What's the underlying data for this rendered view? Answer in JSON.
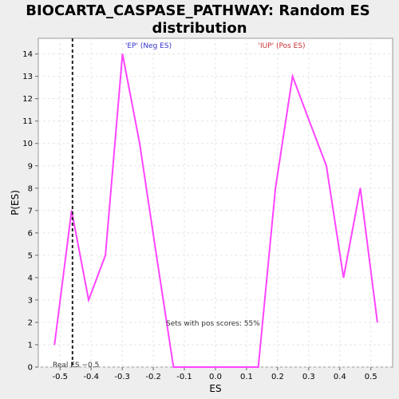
{
  "chart_data": {
    "type": "line",
    "title_line1": "BIOCARTA_CASPASE_PATHWAY: Random ES",
    "title_line2": "distribution",
    "xlabel": "ES",
    "ylabel": "P(ES)",
    "xlim": [
      -0.57,
      0.57
    ],
    "ylim": [
      0,
      14.7
    ],
    "xticks": [
      "-0.5",
      "-0.4",
      "-0.3",
      "-0.2",
      "-0.1",
      "0.0",
      "0.1",
      "0.2",
      "0.3",
      "0.4",
      "0.5"
    ],
    "xtick_values": [
      -0.5,
      -0.4,
      -0.3,
      -0.2,
      -0.1,
      0.0,
      0.1,
      0.2,
      0.3,
      0.4,
      0.5
    ],
    "yticks": [
      "0",
      "1",
      "2",
      "3",
      "4",
      "5",
      "6",
      "7",
      "8",
      "9",
      "10",
      "11",
      "12",
      "13",
      "14"
    ],
    "ytick_values": [
      0,
      1,
      2,
      3,
      4,
      5,
      6,
      7,
      8,
      9,
      10,
      11,
      12,
      13,
      14
    ],
    "grid": true,
    "series": [
      {
        "color": "#ff44ff",
        "x": [
          -0.518,
          -0.463,
          -0.408,
          -0.354,
          -0.299,
          -0.244,
          -0.19,
          -0.135,
          -0.08,
          -0.026,
          0.029,
          0.084,
          0.138,
          0.193,
          0.248,
          0.302,
          0.357,
          0.412,
          0.466,
          0.521
        ],
        "y": [
          1,
          7,
          3,
          5,
          14,
          10,
          5,
          0,
          0,
          0,
          0,
          0,
          0,
          8,
          13,
          11,
          9,
          4,
          8,
          2
        ]
      }
    ],
    "real_es": {
      "value": -0.5,
      "x": -0.46,
      "label": "Real ES −0.5"
    },
    "annotations": {
      "neg_label": "'EP' (Neg ES)",
      "pos_label": "'IUP' (Pos ES)",
      "pos_scores": "Sets with pos scores: 55%",
      "neg_color": "#3333cc",
      "pos_color": "#cc3333"
    }
  }
}
